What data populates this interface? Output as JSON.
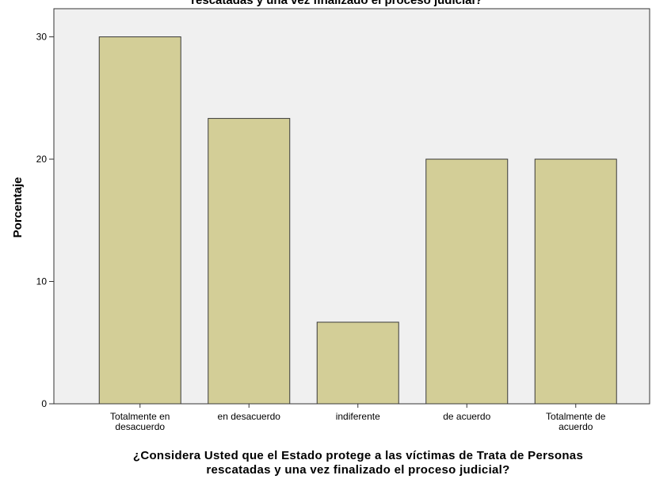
{
  "chart_data": {
    "type": "bar",
    "title": "rescatadas y una vez finalizado el proceso judicial?",
    "xlabel_lines": [
      "¿Considera Usted que el Estado protege a las víctimas de Trata de Personas",
      "rescatadas y una vez finalizado el proceso judicial?"
    ],
    "ylabel": "Porcentaje",
    "categories": [
      [
        "Totalmente en",
        "desacuerdo"
      ],
      [
        "en desacuerdo"
      ],
      [
        "indiferente"
      ],
      [
        "de acuerdo"
      ],
      [
        "Totalmente de",
        "acuerdo"
      ]
    ],
    "values": [
      30.0,
      23.33,
      6.67,
      20.0,
      20.0
    ],
    "ylim": [
      0,
      32.3
    ],
    "yticks": [
      0,
      10,
      20,
      30
    ],
    "grid": false,
    "colors": {
      "bar_fill": "#D3CE97",
      "bar_stroke": "#3A3A3A",
      "plot_bg": "#F0F0F0",
      "axis": "#333333"
    }
  }
}
